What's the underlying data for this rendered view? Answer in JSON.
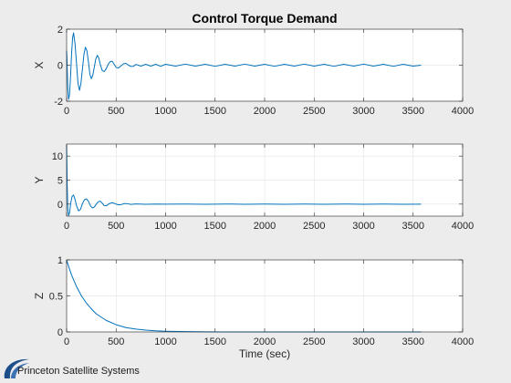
{
  "window": {
    "background": "#ececec"
  },
  "branding": {
    "text": "Princeton Satellite Systems",
    "color": "#1c4f8a"
  },
  "chart_data": [
    {
      "type": "line",
      "title": "Control Torque Demand",
      "xlabel": "",
      "ylabel": "X",
      "xlim": [
        0,
        4000
      ],
      "ylim": [
        -2,
        2
      ],
      "xticks": [
        0,
        500,
        1000,
        1500,
        2000,
        2500,
        3000,
        3500,
        4000
      ],
      "yticks": [
        -2,
        0,
        2
      ],
      "grid": true,
      "color": "#0072bd",
      "series": [
        {
          "x": [
            0,
            4,
            12,
            20,
            30,
            40,
            50,
            60,
            70,
            85,
            100,
            115,
            130,
            145,
            160,
            175,
            190,
            205,
            220,
            235,
            250,
            265,
            280,
            295,
            310,
            325,
            340,
            360,
            380,
            400,
            420,
            440,
            460,
            480,
            500,
            525,
            550,
            575,
            600,
            625,
            650,
            675,
            700,
            750,
            800,
            850,
            900,
            950,
            1000,
            1100,
            1200,
            1300,
            1400,
            1500,
            1600,
            1700,
            1800,
            1900,
            2000,
            2100,
            2200,
            2300,
            2400,
            2500,
            2600,
            2700,
            2800,
            2900,
            3000,
            3100,
            3200,
            3300,
            3400,
            3500,
            3580
          ],
          "y": [
            0.8,
            0.3,
            -1.3,
            -1.9,
            -1.6,
            -0.6,
            0.6,
            1.5,
            1.8,
            1.2,
            0.1,
            -1.0,
            -1.4,
            -1.0,
            -0.2,
            0.6,
            1.0,
            0.8,
            0.2,
            -0.5,
            -0.75,
            -0.55,
            -0.1,
            0.35,
            0.55,
            0.4,
            0.05,
            -0.3,
            -0.35,
            -0.2,
            0.05,
            0.2,
            0.22,
            0.05,
            -0.12,
            -0.15,
            -0.03,
            0.08,
            0.1,
            0.0,
            -0.07,
            -0.06,
            0.04,
            -0.05,
            0.05,
            -0.05,
            0.05,
            -0.06,
            0.05,
            -0.05,
            0.06,
            -0.05,
            0.05,
            -0.06,
            0.05,
            -0.05,
            0.06,
            -0.05,
            0.05,
            -0.06,
            0.05,
            -0.05,
            0.06,
            -0.05,
            0.05,
            -0.06,
            0.05,
            -0.05,
            0.06,
            -0.05,
            0.05,
            -0.06,
            0.05,
            -0.05,
            0.0
          ]
        }
      ]
    },
    {
      "type": "line",
      "title": "",
      "xlabel": "",
      "ylabel": "Y",
      "xlim": [
        0,
        4000
      ],
      "ylim": [
        -2.5,
        12.5
      ],
      "xticks": [
        0,
        500,
        1000,
        1500,
        2000,
        2500,
        3000,
        3500,
        4000
      ],
      "yticks": [
        0,
        5,
        10
      ],
      "grid": true,
      "color": "#0072bd",
      "series": [
        {
          "x": [
            0,
            5,
            12,
            20,
            30,
            40,
            55,
            70,
            85,
            100,
            120,
            140,
            160,
            180,
            200,
            220,
            240,
            260,
            280,
            300,
            320,
            340,
            360,
            380,
            400,
            430,
            460,
            490,
            520,
            550,
            580,
            610,
            650,
            700,
            800,
            900,
            1000,
            1200,
            1400,
            1600,
            1800,
            2000,
            2200,
            2400,
            2600,
            2800,
            3000,
            3200,
            3400,
            3580
          ],
          "y": [
            12.3,
            5.0,
            -1.0,
            -2.4,
            -1.8,
            0.0,
            1.6,
            1.9,
            1.0,
            -0.3,
            -1.4,
            -1.1,
            0.1,
            0.9,
            1.1,
            0.6,
            -0.3,
            -0.8,
            -0.6,
            0.0,
            0.5,
            0.6,
            0.2,
            -0.3,
            -0.35,
            0.1,
            0.3,
            0.1,
            -0.15,
            -0.1,
            0.1,
            0.1,
            -0.05,
            0.05,
            -0.02,
            0.02,
            0.0,
            0.02,
            -0.02,
            0.02,
            -0.02,
            0.02,
            -0.02,
            0.02,
            -0.02,
            0.02,
            -0.02,
            0.02,
            -0.02,
            0.0
          ]
        }
      ]
    },
    {
      "type": "line",
      "title": "",
      "xlabel": "Time (sec)",
      "ylabel": "Z",
      "xlim": [
        0,
        4000
      ],
      "ylim": [
        0,
        1
      ],
      "xticks": [
        0,
        500,
        1000,
        1500,
        2000,
        2500,
        3000,
        3500,
        4000
      ],
      "yticks": [
        0,
        0.5,
        1
      ],
      "grid": true,
      "color": "#0072bd",
      "series": [
        {
          "x": [
            0,
            25,
            50,
            75,
            100,
            150,
            200,
            250,
            300,
            400,
            500,
            600,
            700,
            800,
            900,
            1000,
            1200,
            1400,
            1600,
            2000,
            2400,
            2800,
            3200,
            3580
          ],
          "y": [
            1.0,
            0.89,
            0.79,
            0.71,
            0.63,
            0.5,
            0.4,
            0.32,
            0.25,
            0.16,
            0.1,
            0.06,
            0.04,
            0.025,
            0.016,
            0.01,
            0.004,
            0.0016,
            0.0007,
            0.0001,
            0.0,
            0.0,
            0.0,
            0.0
          ]
        }
      ]
    }
  ]
}
